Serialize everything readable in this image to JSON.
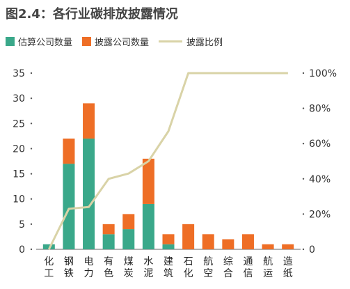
{
  "title": "图2.4：各行业碳排放披露情况",
  "colors": {
    "estimated": "#3aa88a",
    "disclosed": "#ee6e26",
    "ratio": "#d9d3a7",
    "axis": "#666666"
  },
  "legend": {
    "estimated": "估算公司数量",
    "disclosed": "披露公司数量",
    "ratio": "披露比例"
  },
  "chart_data": {
    "type": "bar",
    "stacked": true,
    "categories": [
      "化工",
      "钢铁",
      "电力",
      "有色",
      "煤炭",
      "水泥",
      "建筑",
      "石化",
      "航空",
      "综合",
      "通信",
      "航运",
      "造纸"
    ],
    "series": [
      {
        "name": "估算公司数量",
        "axis": "left",
        "values": [
          1,
          17,
          22,
          3,
          4,
          9,
          1,
          0,
          0,
          0,
          0,
          0,
          0
        ]
      },
      {
        "name": "披露公司数量",
        "axis": "left",
        "values": [
          0,
          5,
          7,
          2,
          3,
          9,
          2,
          5,
          3,
          2,
          3,
          1,
          1
        ]
      },
      {
        "name": "披露比例",
        "type": "line",
        "axis": "right",
        "values": [
          0,
          23,
          24,
          40,
          43,
          50,
          67,
          100,
          100,
          100,
          100,
          100,
          100
        ]
      }
    ],
    "y_left": {
      "min": 0,
      "max": 35,
      "ticks": [
        "0",
        "5",
        "10",
        "15",
        "20",
        "25",
        "30",
        "35"
      ]
    },
    "y_right": {
      "min": 0,
      "max": 100,
      "ticks": [
        "0",
        "20%",
        "40%",
        "60%",
        "80%",
        "100%"
      ]
    },
    "grid": false,
    "legend_position": "top-left"
  }
}
